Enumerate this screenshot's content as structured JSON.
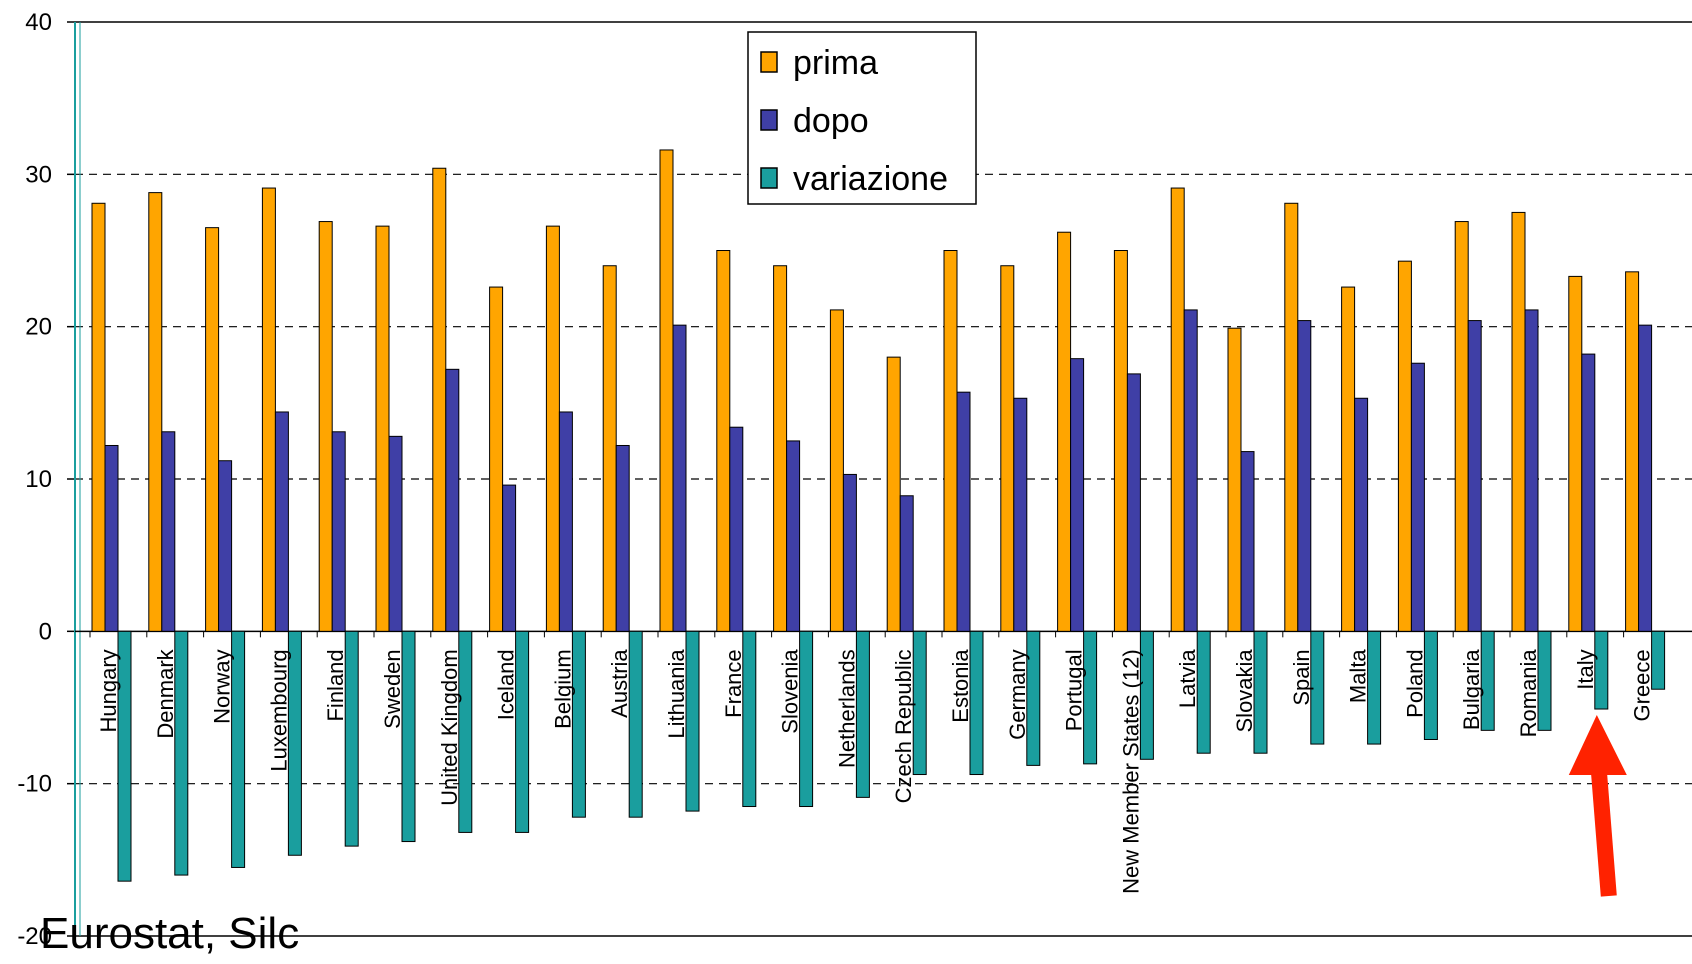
{
  "source_note": "Eurostat, Silc",
  "chart_data": {
    "type": "bar",
    "categories": [
      "Hungary",
      "Denmark",
      "Norway",
      "Luxembourg",
      "Finland",
      "Sweden",
      "United Kingdom",
      "Iceland",
      "Belgium",
      "Austria",
      "Lithuania",
      "France",
      "Slovenia",
      "Netherlands",
      "Czech Republic",
      "Estonia",
      "Germany",
      "Portugal",
      "New Member States (12)",
      "Latvia",
      "Slovakia",
      "Spain",
      "Malta",
      "Poland",
      "Bulgaria",
      "Romania",
      "Italy",
      "Greece"
    ],
    "series": [
      {
        "name": "prima",
        "color": "#ffa500",
        "values": [
          28.1,
          28.8,
          26.5,
          29.1,
          26.9,
          26.6,
          30.4,
          22.6,
          26.6,
          24.0,
          31.6,
          25.0,
          24.0,
          21.1,
          18.0,
          25.0,
          24.0,
          26.2,
          25.0,
          29.1,
          19.9,
          28.1,
          22.6,
          24.3,
          26.9,
          27.5,
          23.3,
          23.6
        ]
      },
      {
        "name": "dopo",
        "color": "#3f3fa6",
        "values": [
          12.2,
          13.1,
          11.2,
          14.4,
          13.1,
          12.8,
          17.2,
          9.6,
          14.4,
          12.2,
          20.1,
          13.4,
          12.5,
          10.3,
          8.9,
          15.7,
          15.3,
          17.9,
          16.9,
          21.1,
          11.8,
          20.4,
          15.3,
          17.6,
          20.4,
          21.1,
          18.2,
          20.1
        ]
      },
      {
        "name": "variazione",
        "color": "#1a9e9e",
        "values": [
          -16.4,
          -16.0,
          -15.5,
          -14.7,
          -14.1,
          -13.8,
          -13.2,
          -13.2,
          -12.2,
          -12.2,
          -11.8,
          -11.5,
          -11.5,
          -10.9,
          -9.4,
          -9.4,
          -8.8,
          -8.7,
          -8.4,
          -8.0,
          -8.0,
          -7.4,
          -7.4,
          -7.1,
          -6.5,
          -6.5,
          -5.1,
          -3.8
        ]
      }
    ],
    "yticks": [
      40,
      30,
      20,
      10,
      0,
      -10,
      -20
    ],
    "ylim": [
      -20,
      40
    ],
    "grid": true,
    "legend_position": "top-center",
    "annotation": {
      "type": "arrow",
      "color": "#ff2200",
      "points_to": "Italy"
    }
  }
}
